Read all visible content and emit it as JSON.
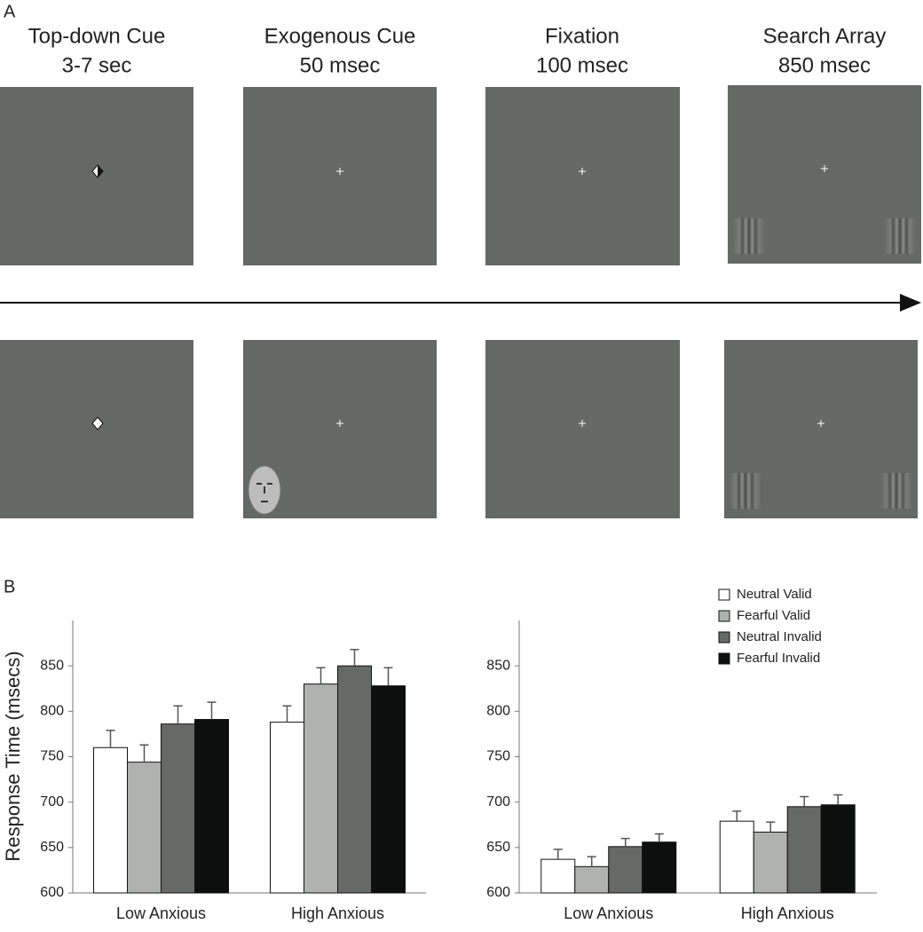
{
  "panels": {
    "a_label": "A",
    "b_label": "B"
  },
  "timeline": [
    {
      "title": "Top-down Cue",
      "duration": "3-7 sec"
    },
    {
      "title": "Exogenous Cue",
      "duration": "50 msec"
    },
    {
      "title": "Fixation",
      "duration": "100 msec"
    },
    {
      "title": "Search Array",
      "duration": "850 msec"
    }
  ],
  "chart_data": [
    {
      "type": "bar",
      "y_label": "Response Time (msecs)",
      "categories": [
        "Low Anxious",
        "High Anxious"
      ],
      "series": [
        {
          "name": "Neutral Valid",
          "color": "#ffffff",
          "values": [
            760,
            788
          ],
          "errors": [
            19,
            18
          ]
        },
        {
          "name": "Fearful Valid",
          "color": "#b0b2b0",
          "values": [
            744,
            830
          ],
          "errors": [
            19,
            18
          ]
        },
        {
          "name": "Neutral Invalid",
          "color": "#656a66",
          "values": [
            786,
            850
          ],
          "errors": [
            20,
            18
          ]
        },
        {
          "name": "Fearful Invalid",
          "color": "#0d0f0f",
          "values": [
            791,
            828
          ],
          "errors": [
            19,
            20
          ]
        }
      ],
      "ylim": [
        600,
        900
      ],
      "yticks": [
        600,
        650,
        700,
        750,
        800,
        850
      ]
    },
    {
      "type": "bar",
      "categories": [
        "Low Anxious",
        "High Anxious"
      ],
      "series": [
        {
          "name": "Neutral Valid",
          "color": "#ffffff",
          "values": [
            637,
            679
          ],
          "errors": [
            11,
            11
          ]
        },
        {
          "name": "Fearful Valid",
          "color": "#b0b2b0",
          "values": [
            629,
            667
          ],
          "errors": [
            11,
            11
          ]
        },
        {
          "name": "Neutral Invalid",
          "color": "#656a66",
          "values": [
            651,
            695
          ],
          "errors": [
            9,
            11
          ]
        },
        {
          "name": "Fearful Invalid",
          "color": "#0d0f0f",
          "values": [
            656,
            697
          ],
          "errors": [
            9,
            11
          ]
        }
      ],
      "ylim": [
        600,
        900
      ],
      "yticks": [
        600,
        650,
        700,
        750,
        800,
        850
      ],
      "legend": "top-right"
    }
  ]
}
